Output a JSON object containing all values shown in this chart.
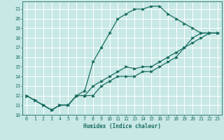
{
  "xlabel": "Humidex (Indice chaleur)",
  "bg_color": "#c8e8e5",
  "grid_color": "#ffffff",
  "line_color": "#1a6e62",
  "xlim": [
    -0.5,
    23.5
  ],
  "ylim": [
    10,
    21.8
  ],
  "xticks": [
    0,
    1,
    2,
    3,
    4,
    5,
    6,
    7,
    8,
    9,
    10,
    11,
    12,
    13,
    14,
    15,
    16,
    17,
    18,
    19,
    20,
    21,
    22,
    23
  ],
  "yticks": [
    10,
    11,
    12,
    13,
    14,
    15,
    16,
    17,
    18,
    19,
    20,
    21
  ],
  "line1_x": [
    0,
    1,
    2,
    3,
    4,
    5,
    6,
    7,
    8,
    9,
    10,
    11,
    12,
    13,
    14,
    15,
    16,
    17,
    18,
    19,
    20,
    21,
    22,
    23
  ],
  "line1_y": [
    12,
    11.5,
    11,
    10.5,
    11,
    11,
    12,
    12,
    12,
    13,
    13.5,
    14,
    14,
    14,
    14.5,
    14.5,
    15,
    15.5,
    16,
    17,
    18,
    18.5,
    18.5,
    18.5
  ],
  "line2_x": [
    0,
    1,
    2,
    3,
    4,
    5,
    6,
    7,
    8,
    9,
    10,
    11,
    12,
    13,
    14,
    15,
    16,
    17,
    18,
    19,
    20,
    21,
    22,
    23
  ],
  "line2_y": [
    12,
    11.5,
    11,
    10.5,
    11,
    11,
    12,
    12.5,
    15.5,
    17,
    18.5,
    20,
    20.5,
    21,
    21,
    21.3,
    21.3,
    20.5,
    20,
    19.5,
    19,
    18.5,
    18.5,
    18.5
  ],
  "line3_x": [
    0,
    1,
    2,
    3,
    4,
    5,
    6,
    7,
    8,
    9,
    10,
    11,
    12,
    13,
    14,
    15,
    16,
    17,
    18,
    19,
    20,
    21,
    22,
    23
  ],
  "line3_y": [
    12,
    11.5,
    11,
    10.5,
    11,
    11,
    12,
    12,
    13,
    13.5,
    14,
    14.5,
    15,
    14.8,
    15,
    15,
    15.5,
    16,
    16.5,
    17,
    17.5,
    18,
    18.5,
    18.5
  ]
}
